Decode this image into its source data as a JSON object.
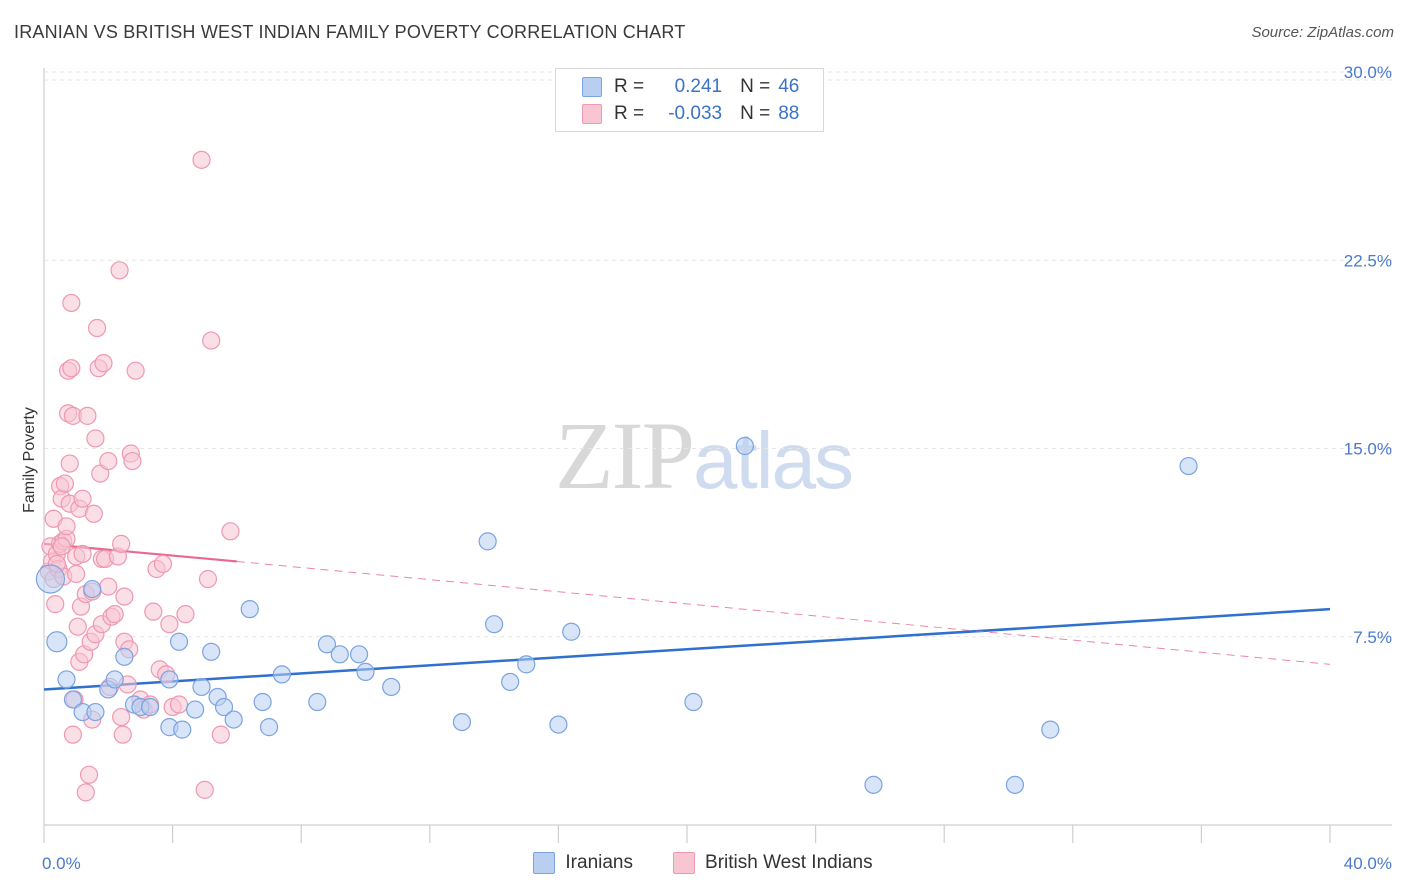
{
  "header": {
    "title": "IRANIAN VS BRITISH WEST INDIAN FAMILY POVERTY CORRELATION CHART",
    "source": "Source: ZipAtlas.com"
  },
  "watermark": {
    "zip": "ZIP",
    "atlas": "atlas"
  },
  "legend": {
    "r_label": "R =",
    "n_label": "N =",
    "series": [
      {
        "name": "Iranians",
        "r": "0.241",
        "n": "46"
      },
      {
        "name": "British West Indians",
        "r": "-0.033",
        "n": "88"
      }
    ]
  },
  "colors": {
    "iranians_fill": "#b8cff2",
    "iranians_stroke": "#7aa3e0",
    "iranians_line": "#2f6fce",
    "bwi_fill": "#f8c5d3",
    "bwi_stroke": "#ee98b1",
    "bwi_line": "#e8698f"
  },
  "chart_data": {
    "type": "scatter",
    "title": "IRANIAN VS BRITISH WEST INDIAN FAMILY POVERTY CORRELATION CHART",
    "xlabel": "",
    "ylabel": "Family Poverty",
    "xlim": [
      0,
      40
    ],
    "ylim": [
      0,
      30
    ],
    "x_tick_labels": [
      "0.0%",
      "40.0%"
    ],
    "y_ticks": [
      7.5,
      15.0,
      22.5,
      30.0
    ],
    "y_tick_labels": [
      "7.5%",
      "15.0%",
      "22.5%",
      "30.0%"
    ],
    "grid": true,
    "series": [
      {
        "name": "Iranians",
        "points": [
          [
            0.4,
            7.3
          ],
          [
            0.7,
            5.8
          ],
          [
            0.9,
            5.0
          ],
          [
            1.2,
            4.5
          ],
          [
            1.5,
            9.4
          ],
          [
            1.6,
            4.5
          ],
          [
            2.0,
            5.4
          ],
          [
            2.2,
            5.8
          ],
          [
            2.5,
            6.7
          ],
          [
            2.8,
            4.8
          ],
          [
            3.0,
            4.7
          ],
          [
            3.3,
            4.7
          ],
          [
            3.9,
            5.8
          ],
          [
            3.9,
            3.9
          ],
          [
            4.2,
            7.3
          ],
          [
            4.3,
            3.8
          ],
          [
            4.7,
            4.6
          ],
          [
            4.9,
            5.5
          ],
          [
            5.2,
            6.9
          ],
          [
            5.4,
            5.1
          ],
          [
            5.6,
            4.7
          ],
          [
            5.9,
            4.2
          ],
          [
            6.4,
            8.6
          ],
          [
            6.8,
            4.9
          ],
          [
            7.0,
            3.9
          ],
          [
            7.4,
            6.0
          ],
          [
            8.5,
            4.9
          ],
          [
            8.8,
            7.2
          ],
          [
            9.2,
            6.8
          ],
          [
            9.8,
            6.8
          ],
          [
            10.0,
            6.1
          ],
          [
            10.8,
            5.5
          ],
          [
            13.0,
            4.1
          ],
          [
            13.8,
            11.3
          ],
          [
            14.0,
            8.0
          ],
          [
            14.5,
            5.7
          ],
          [
            15.0,
            6.4
          ],
          [
            16.0,
            4.0
          ],
          [
            16.4,
            7.7
          ],
          [
            20.2,
            4.9
          ],
          [
            21.8,
            15.1
          ],
          [
            25.8,
            1.6
          ],
          [
            30.2,
            1.6
          ],
          [
            31.3,
            3.8
          ],
          [
            35.6,
            14.3
          ],
          [
            0.2,
            9.8
          ]
        ],
        "trend": {
          "x": [
            0,
            40
          ],
          "y": [
            5.4,
            8.6
          ],
          "style": "solid"
        }
      },
      {
        "name": "British West Indians",
        "points": [
          [
            0.15,
            10.1
          ],
          [
            0.2,
            11.1
          ],
          [
            0.25,
            10.5
          ],
          [
            0.3,
            9.8
          ],
          [
            0.3,
            12.2
          ],
          [
            0.35,
            8.8
          ],
          [
            0.4,
            10.8
          ],
          [
            0.45,
            10.2
          ],
          [
            0.5,
            13.5
          ],
          [
            0.5,
            11.2
          ],
          [
            0.55,
            13.0
          ],
          [
            0.6,
            9.9
          ],
          [
            0.6,
            11.3
          ],
          [
            0.65,
            13.6
          ],
          [
            0.7,
            11.4
          ],
          [
            0.7,
            11.9
          ],
          [
            0.75,
            16.4
          ],
          [
            0.75,
            18.1
          ],
          [
            0.8,
            12.8
          ],
          [
            0.8,
            14.4
          ],
          [
            0.85,
            18.2
          ],
          [
            0.85,
            20.8
          ],
          [
            0.9,
            16.3
          ],
          [
            0.9,
            3.6
          ],
          [
            0.95,
            5.0
          ],
          [
            1.0,
            10.7
          ],
          [
            1.0,
            10.0
          ],
          [
            1.05,
            7.9
          ],
          [
            1.1,
            6.5
          ],
          [
            1.1,
            12.6
          ],
          [
            1.15,
            8.7
          ],
          [
            1.2,
            10.8
          ],
          [
            1.2,
            13.0
          ],
          [
            1.25,
            6.8
          ],
          [
            1.3,
            9.2
          ],
          [
            1.3,
            1.3
          ],
          [
            1.35,
            16.3
          ],
          [
            1.4,
            2.0
          ],
          [
            1.45,
            7.3
          ],
          [
            1.5,
            4.2
          ],
          [
            1.5,
            9.3
          ],
          [
            1.55,
            12.4
          ],
          [
            1.6,
            7.6
          ],
          [
            1.6,
            15.4
          ],
          [
            1.65,
            19.8
          ],
          [
            1.7,
            18.2
          ],
          [
            1.75,
            14.0
          ],
          [
            1.8,
            8.0
          ],
          [
            1.8,
            10.6
          ],
          [
            1.85,
            18.4
          ],
          [
            1.9,
            10.6
          ],
          [
            2.0,
            9.5
          ],
          [
            2.0,
            14.5
          ],
          [
            2.1,
            8.3
          ],
          [
            2.2,
            8.4
          ],
          [
            2.3,
            10.7
          ],
          [
            2.35,
            22.1
          ],
          [
            2.4,
            4.3
          ],
          [
            2.4,
            11.2
          ],
          [
            2.45,
            3.6
          ],
          [
            2.5,
            7.3
          ],
          [
            2.5,
            9.1
          ],
          [
            2.6,
            5.6
          ],
          [
            2.65,
            7.0
          ],
          [
            2.7,
            14.8
          ],
          [
            2.75,
            14.5
          ],
          [
            2.85,
            18.1
          ],
          [
            3.0,
            5.0
          ],
          [
            3.1,
            4.6
          ],
          [
            3.3,
            4.8
          ],
          [
            3.5,
            10.2
          ],
          [
            3.4,
            8.5
          ],
          [
            3.6,
            6.2
          ],
          [
            3.7,
            10.4
          ],
          [
            3.8,
            6.0
          ],
          [
            3.9,
            8.0
          ],
          [
            4.0,
            4.7
          ],
          [
            4.2,
            4.8
          ],
          [
            4.4,
            8.4
          ],
          [
            4.9,
            26.5
          ],
          [
            5.0,
            1.4
          ],
          [
            5.1,
            9.8
          ],
          [
            5.2,
            19.3
          ],
          [
            5.5,
            3.6
          ],
          [
            5.8,
            11.7
          ],
          [
            0.4,
            10.4
          ],
          [
            0.55,
            11.1
          ],
          [
            2.05,
            5.5
          ]
        ],
        "trend": {
          "x": [
            0,
            6
          ],
          "y": [
            11.2,
            10.5
          ],
          "style": "solid",
          "extension": {
            "x": [
              6,
              40
            ],
            "y": [
              10.5,
              6.4
            ],
            "style": "dashed"
          }
        }
      }
    ]
  }
}
